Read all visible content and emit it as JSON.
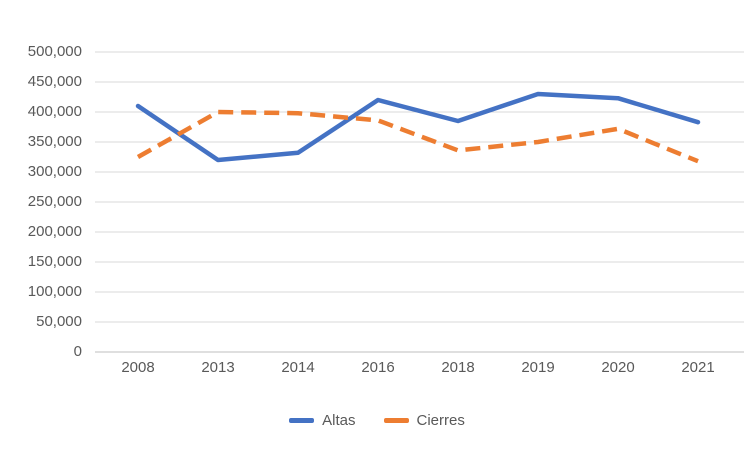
{
  "chart_data": {
    "type": "line",
    "title": "",
    "categories": [
      "2008",
      "2013",
      "2014",
      "2016",
      "2018",
      "2019",
      "2020",
      "2021"
    ],
    "series": [
      {
        "name": "Altas",
        "color": "#4472C4",
        "line_style": "solid",
        "values": [
          410000,
          320000,
          332000,
          420000,
          385000,
          430000,
          423000,
          383000
        ]
      },
      {
        "name": "Cierres",
        "color": "#ED7D31",
        "line_style": "dashed",
        "values": [
          325000,
          400000,
          398000,
          386000,
          336000,
          350000,
          372000,
          318000
        ]
      }
    ],
    "y_axis": {
      "min": 0,
      "max": 500000,
      "step": 50000,
      "tick_labels": [
        "0",
        "50,000",
        "100,000",
        "150,000",
        "200,000",
        "250,000",
        "300,000",
        "350,000",
        "400,000",
        "450,000",
        "500,000"
      ]
    },
    "grid": true,
    "legend": {
      "position": "bottom",
      "entries": [
        "Altas",
        "Cierres"
      ]
    },
    "colors": {
      "gridline": "#D9D9D9",
      "axis_line": "#BFBFBF",
      "tick_text": "#595959",
      "background": "#FFFFFF"
    }
  }
}
